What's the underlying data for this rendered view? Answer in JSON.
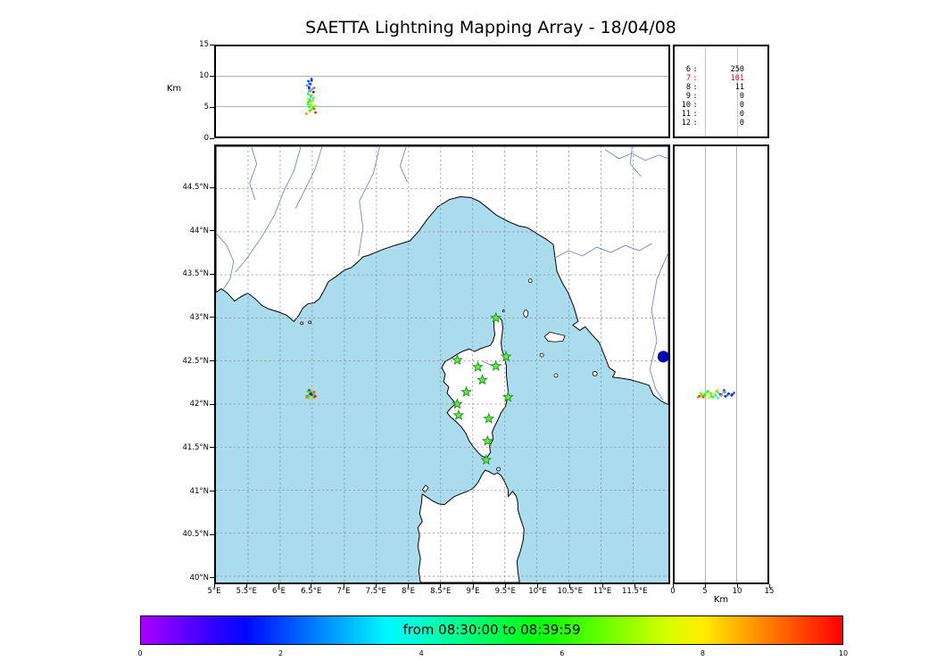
{
  "title": "SAETTA Lightning Mapping Array - 18/04/08",
  "colors": {
    "sea": "#aadcee",
    "land": "#ffffff",
    "coastline": "#000000",
    "river": "#6677cc",
    "grid": "#888888",
    "station_fill": "#5ef23c",
    "station_edge": "#1f8a1f",
    "offshore_marker": "#0000b0",
    "highlight": "#ff0000"
  },
  "axes": {
    "alt_label": "Km",
    "alt_ticks": [
      0,
      5,
      10,
      15
    ],
    "alt_max_km": 15,
    "lat_ticks": [
      {
        "value": 44.5,
        "label": "44.5°N"
      },
      {
        "value": 44.0,
        "label": "44°N"
      },
      {
        "value": 43.5,
        "label": "43.5°N"
      },
      {
        "value": 43.0,
        "label": "43°N"
      },
      {
        "value": 42.5,
        "label": "42.5°N"
      },
      {
        "value": 42.0,
        "label": "42°N"
      },
      {
        "value": 41.5,
        "label": "41.5°N"
      },
      {
        "value": 41.0,
        "label": "41°N"
      },
      {
        "value": 40.5,
        "label": "40.5°N"
      },
      {
        "value": 40.0,
        "label": "40°N"
      }
    ],
    "lon_ticks": [
      {
        "value": 5.0,
        "label": "5°E"
      },
      {
        "value": 5.5,
        "label": "5.5°E"
      },
      {
        "value": 6.0,
        "label": "6°E"
      },
      {
        "value": 6.5,
        "label": "6.5°E"
      },
      {
        "value": 7.0,
        "label": "7°E"
      },
      {
        "value": 7.5,
        "label": "7.5°E"
      },
      {
        "value": 8.0,
        "label": "8°E"
      },
      {
        "value": 8.5,
        "label": "8.5°E"
      },
      {
        "value": 9.0,
        "label": "9°E"
      },
      {
        "value": 9.5,
        "label": "9.5°E"
      },
      {
        "value": 10.0,
        "label": "10°E"
      },
      {
        "value": 10.5,
        "label": "10.5°E"
      },
      {
        "value": 11.0,
        "label": "11°E"
      },
      {
        "value": 11.5,
        "label": "11.5°E"
      }
    ]
  },
  "station_histogram": {
    "rows": [
      {
        "stations": "6",
        "count": "250",
        "highlight": false
      },
      {
        "stations": "7",
        "count": "101",
        "highlight": true
      },
      {
        "stations": "8",
        "count": "11",
        "highlight": false
      },
      {
        "stations": "9",
        "count": "0",
        "highlight": false
      },
      {
        "stations": "10",
        "count": "0",
        "highlight": false
      },
      {
        "stations": "11",
        "count": "0",
        "highlight": false
      },
      {
        "stations": "12",
        "count": "0",
        "highlight": false
      }
    ]
  },
  "colorbar": {
    "label": "from 08:30:00 to 08:39:59",
    "ticks": [
      0,
      2,
      4,
      6,
      8,
      10
    ],
    "min": 0,
    "max": 10
  },
  "chart_data": {
    "type": "scatter",
    "title": "SAETTA Lightning Mapping Array - 18/04/08",
    "map_extent": {
      "lon_min": 5.0,
      "lon_max": 12.05,
      "lat_min": 39.95,
      "lat_max": 44.99
    },
    "altitude_axis_km": {
      "min": 0,
      "max": 15,
      "ticks": [
        0,
        5,
        10,
        15
      ]
    },
    "time_window": {
      "start": "08:30:00",
      "end": "08:39:59",
      "color_scale_min": 0,
      "color_scale_max": 10
    },
    "stations_contributing_histogram": {
      "6": 250,
      "7": 101,
      "8": 11,
      "9": 0,
      "10": 0,
      "11": 0,
      "12": 0
    },
    "lma_stations_lon_lat": [
      [
        9.36,
        43.0
      ],
      [
        8.76,
        42.51
      ],
      [
        9.08,
        42.43
      ],
      [
        9.36,
        42.44
      ],
      [
        9.52,
        42.55
      ],
      [
        9.15,
        42.28
      ],
      [
        8.9,
        42.14
      ],
      [
        9.55,
        42.08
      ],
      [
        8.76,
        42.0
      ],
      [
        8.78,
        41.87
      ],
      [
        9.25,
        41.83
      ],
      [
        9.23,
        41.57
      ],
      [
        9.21,
        41.35
      ]
    ],
    "offshore_marker_lon_lat": [
      11.97,
      42.55
    ],
    "sources_lon_lat_altkm_time": [
      [
        6.44,
        42.1,
        9.2,
        2.0
      ],
      [
        6.46,
        42.12,
        8.8,
        2.5
      ],
      [
        6.45,
        42.09,
        8.2,
        1.5
      ],
      [
        6.47,
        42.11,
        7.6,
        3.0
      ],
      [
        6.43,
        42.13,
        7.1,
        3.5
      ],
      [
        6.48,
        42.1,
        6.6,
        4.0
      ],
      [
        6.46,
        42.08,
        6.2,
        4.5
      ],
      [
        6.44,
        42.12,
        5.8,
        5.0
      ],
      [
        6.47,
        42.14,
        5.3,
        5.5
      ],
      [
        6.45,
        42.11,
        4.9,
        6.0
      ],
      [
        6.49,
        42.09,
        4.5,
        6.5
      ],
      [
        6.46,
        42.13,
        4.2,
        7.0
      ],
      [
        6.5,
        42.1,
        5.0,
        7.5
      ],
      [
        6.47,
        42.07,
        5.5,
        8.0
      ],
      [
        6.51,
        42.12,
        6.0,
        8.5
      ],
      [
        6.48,
        42.15,
        6.8,
        9.0
      ],
      [
        6.52,
        42.11,
        7.4,
        1.0
      ],
      [
        6.45,
        42.16,
        8.0,
        0.5
      ],
      [
        6.53,
        42.08,
        4.6,
        9.5
      ],
      [
        6.49,
        42.13,
        9.6,
        2.2
      ],
      [
        6.42,
        42.1,
        8.5,
        2.8
      ],
      [
        6.5,
        42.14,
        7.9,
        3.2
      ],
      [
        6.44,
        42.07,
        7.0,
        3.8
      ],
      [
        6.52,
        42.12,
        6.4,
        4.2
      ],
      [
        6.47,
        42.09,
        5.9,
        4.8
      ],
      [
        6.43,
        42.15,
        5.4,
        5.2
      ],
      [
        6.51,
        42.1,
        4.8,
        5.8
      ],
      [
        6.46,
        42.11,
        4.3,
        6.2
      ],
      [
        6.54,
        42.13,
        5.1,
        6.8
      ],
      [
        6.48,
        42.08,
        5.7,
        7.2
      ],
      [
        6.42,
        42.12,
        6.3,
        7.8
      ],
      [
        6.5,
        42.16,
        6.9,
        8.2
      ],
      [
        6.45,
        42.1,
        7.5,
        8.8
      ],
      [
        6.53,
        42.14,
        8.1,
        9.2
      ],
      [
        6.47,
        42.12,
        8.7,
        1.8
      ],
      [
        6.49,
        42.11,
        9.3,
        0.8
      ],
      [
        6.55,
        42.09,
        4.0,
        9.8
      ],
      [
        6.41,
        42.08,
        3.8,
        9.0
      ]
    ]
  }
}
